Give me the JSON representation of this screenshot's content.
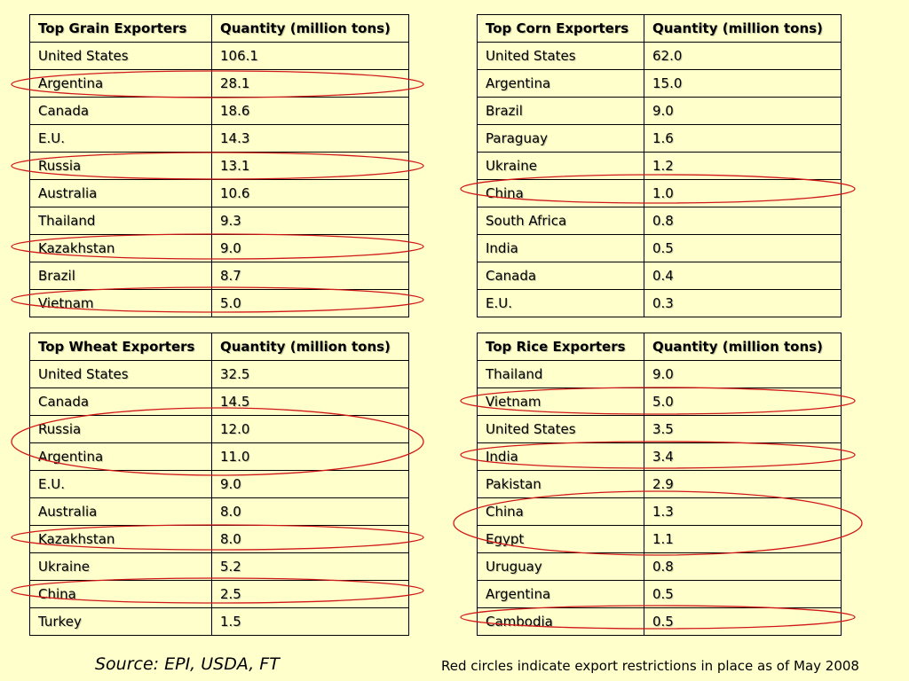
{
  "tables": [
    {
      "header": [
        "Top Grain Exporters",
        "Quantity (million tons)"
      ],
      "rows": [
        [
          "United States",
          "106.1"
        ],
        [
          "Argentina",
          "28.1"
        ],
        [
          "Canada",
          "18.6"
        ],
        [
          "E.U.",
          "14.3"
        ],
        [
          "Russia",
          "13.1"
        ],
        [
          "Australia",
          "10.6"
        ],
        [
          "Thailand",
          "9.3"
        ],
        [
          "Kazakhstan",
          "9.0"
        ],
        [
          "Brazil",
          "8.7"
        ],
        [
          "Vietnam",
          "5.0"
        ]
      ]
    },
    {
      "header": [
        "Top Corn Exporters",
        "Quantity (million tons)"
      ],
      "rows": [
        [
          "United States",
          "62.0"
        ],
        [
          "Argentina",
          "15.0"
        ],
        [
          "Brazil",
          "9.0"
        ],
        [
          "Paraguay",
          "1.6"
        ],
        [
          "Ukraine",
          "1.2"
        ],
        [
          "China",
          "1.0"
        ],
        [
          "South Africa",
          "0.8"
        ],
        [
          "India",
          "0.5"
        ],
        [
          "Canada",
          "0.4"
        ],
        [
          "E.U.",
          "0.3"
        ]
      ]
    },
    {
      "header": [
        "Top Wheat Exporters",
        "Quantity (million tons)"
      ],
      "rows": [
        [
          "United States",
          "32.5"
        ],
        [
          "Canada",
          "14.5"
        ],
        [
          "Russia",
          "12.0"
        ],
        [
          "Argentina",
          "11.0"
        ],
        [
          "E.U.",
          "9.0"
        ],
        [
          "Australia",
          "8.0"
        ],
        [
          "Kazakhstan",
          "8.0"
        ],
        [
          "Ukraine",
          "5.2"
        ],
        [
          "China",
          "2.5"
        ],
        [
          "Turkey",
          "1.5"
        ]
      ]
    },
    {
      "header": [
        "Top Rice Exporters",
        "Quantity (million tons)"
      ],
      "rows": [
        [
          "Thailand",
          "9.0"
        ],
        [
          "Vietnam",
          "5.0"
        ],
        [
          "United States",
          "3.5"
        ],
        [
          "India",
          "3.4"
        ],
        [
          "Pakistan",
          "2.9"
        ],
        [
          "China",
          "1.3"
        ],
        [
          "Egypt",
          "1.1"
        ],
        [
          "Uruguay",
          "0.8"
        ],
        [
          "Argentina",
          "0.5"
        ],
        [
          "Cambodia",
          "0.5"
        ]
      ]
    }
  ],
  "source": "Source: EPI, USDA, FT",
  "note": "Red circles indicate export restrictions in place as of May 2008",
  "colors": {
    "background": "#ffffcc",
    "circle": "#d01818"
  }
}
